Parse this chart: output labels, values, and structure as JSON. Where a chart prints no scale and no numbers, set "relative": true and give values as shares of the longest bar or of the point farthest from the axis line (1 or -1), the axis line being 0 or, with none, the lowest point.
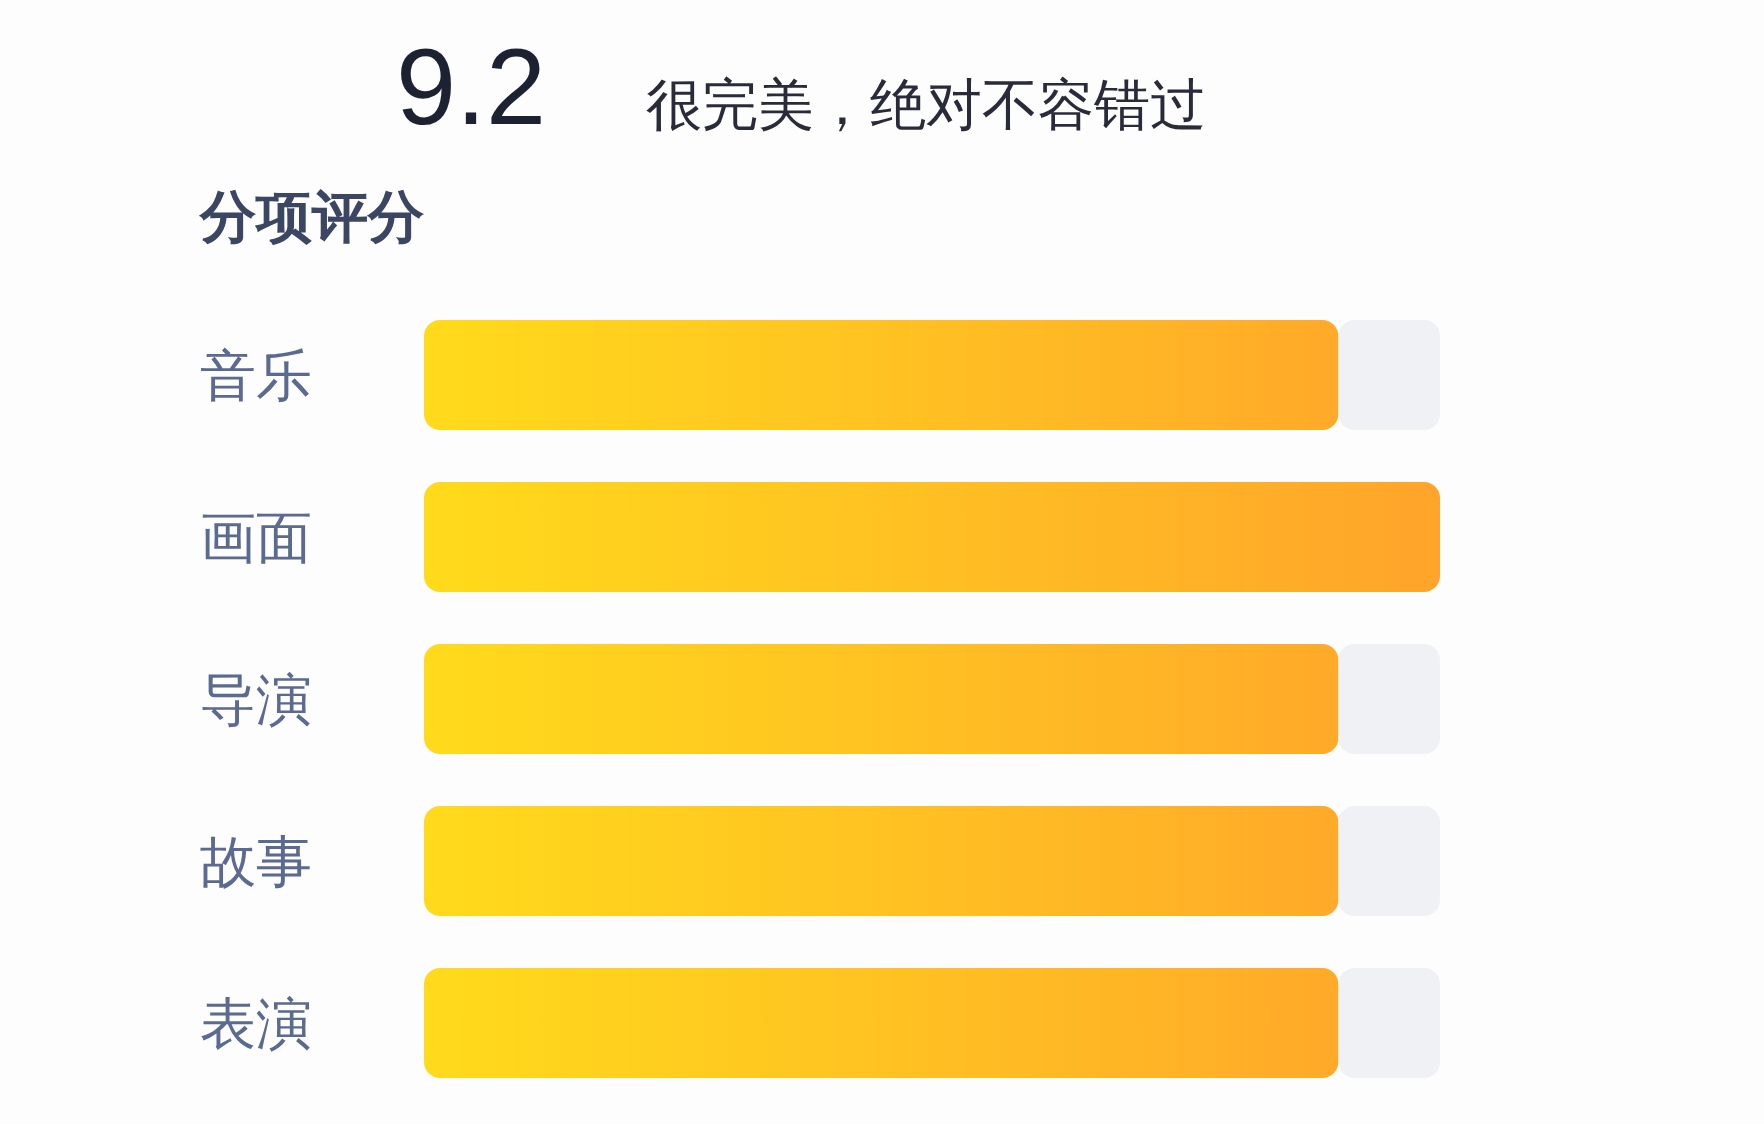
{
  "chart_data": {
    "type": "bar",
    "orientation": "horizontal",
    "stacked": true,
    "relative": true,
    "title": "分项评分",
    "annotations": [
      "9.2",
      "很完美，绝对不容错过"
    ],
    "categories": [
      "音乐",
      "画面",
      "导演",
      "故事",
      "表演"
    ],
    "series": [
      {
        "color": "#ffc520",
        "values": [
          0.9,
          1,
          0.9,
          0.9,
          0.9
        ]
      },
      {
        "color": "#eff1f5",
        "values": [
          0.1,
          0,
          0.1,
          0.1,
          0.1
        ]
      }
    ]
  }
}
